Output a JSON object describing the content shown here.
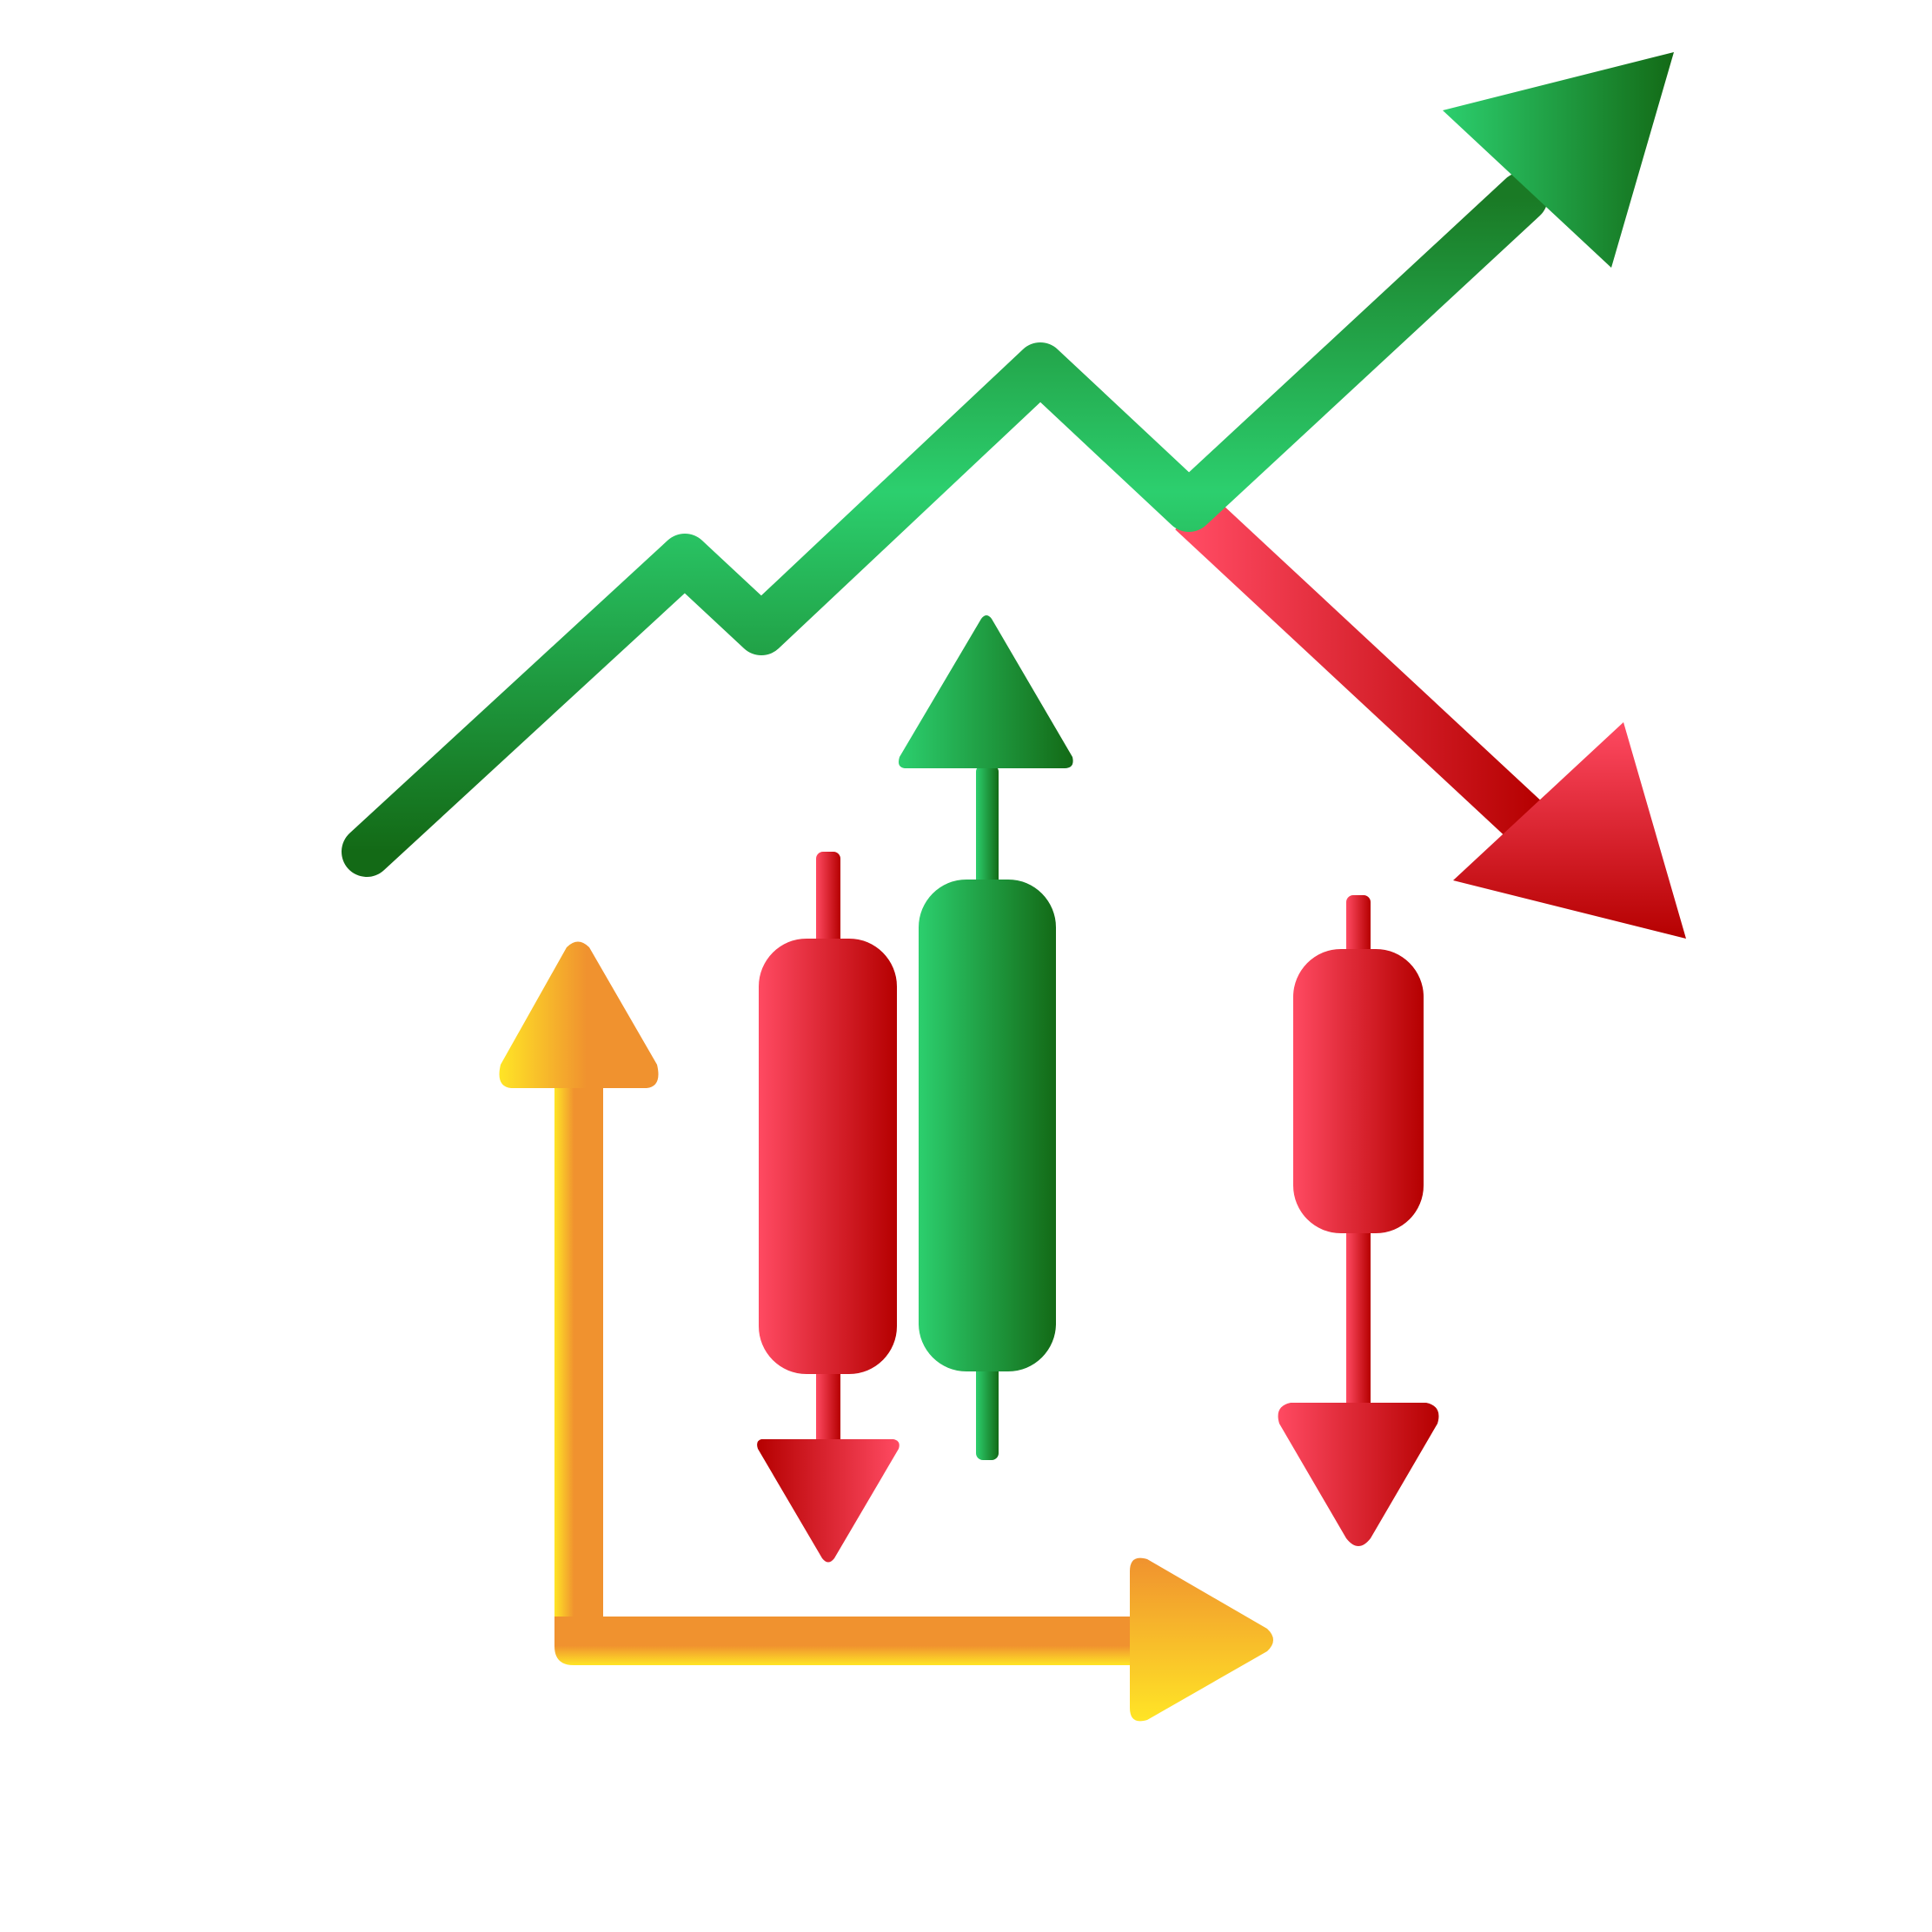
{
  "illustration": {
    "subject": "stock-market-trend-icon",
    "colors": {
      "background": "#ffffff",
      "green_light": "#2ccf6e",
      "green_dark": "#136a16",
      "red_light": "#ff4a62",
      "red_dark": "#b50000",
      "orange": "#f0922f",
      "yellow": "#ffe526"
    },
    "elements": [
      "trend-line-up-icon",
      "trend-line-down-icon",
      "candlestick-bearish-icon",
      "candlestick-bullish-icon",
      "axis-arrows-icon"
    ]
  }
}
